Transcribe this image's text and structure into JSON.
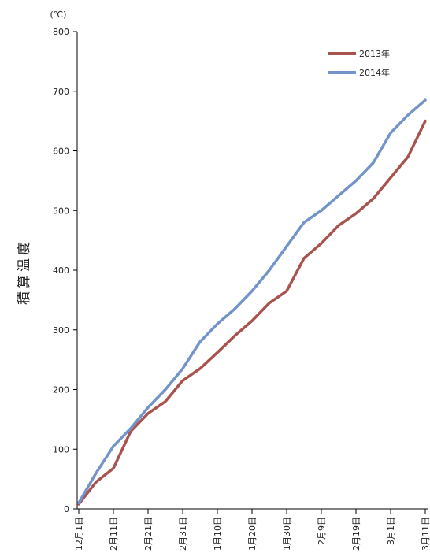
{
  "chart_data": {
    "type": "line",
    "y_unit": "(℃)",
    "y_label": "積算温度",
    "categories": [
      "12月1日",
      null,
      "2月11日",
      null,
      "2月21日",
      null,
      "2月31日",
      null,
      "1月10日",
      null,
      "1月20日",
      null,
      "1月30日",
      null,
      "2月9日",
      null,
      "2月19日",
      null,
      "3月1日",
      null,
      "3月11日"
    ],
    "series": [
      {
        "name": "2013年",
        "color": "#a9534f",
        "values": [
          8,
          45,
          68,
          130,
          160,
          180,
          215,
          235,
          262,
          290,
          315,
          345,
          365,
          420,
          445,
          475,
          495,
          520,
          555,
          590,
          650
        ]
      },
      {
        "name": "2014年",
        "color": "#7394c9",
        "values": [
          10,
          60,
          105,
          135,
          170,
          200,
          235,
          280,
          310,
          335,
          365,
          400,
          440,
          480,
          500,
          525,
          550,
          580,
          630,
          660,
          685
        ]
      }
    ],
    "ylim": [
      0,
      800
    ],
    "yticks": [
      0,
      100,
      200,
      300,
      400,
      500,
      600,
      700,
      800
    ],
    "legend": "upper right"
  }
}
